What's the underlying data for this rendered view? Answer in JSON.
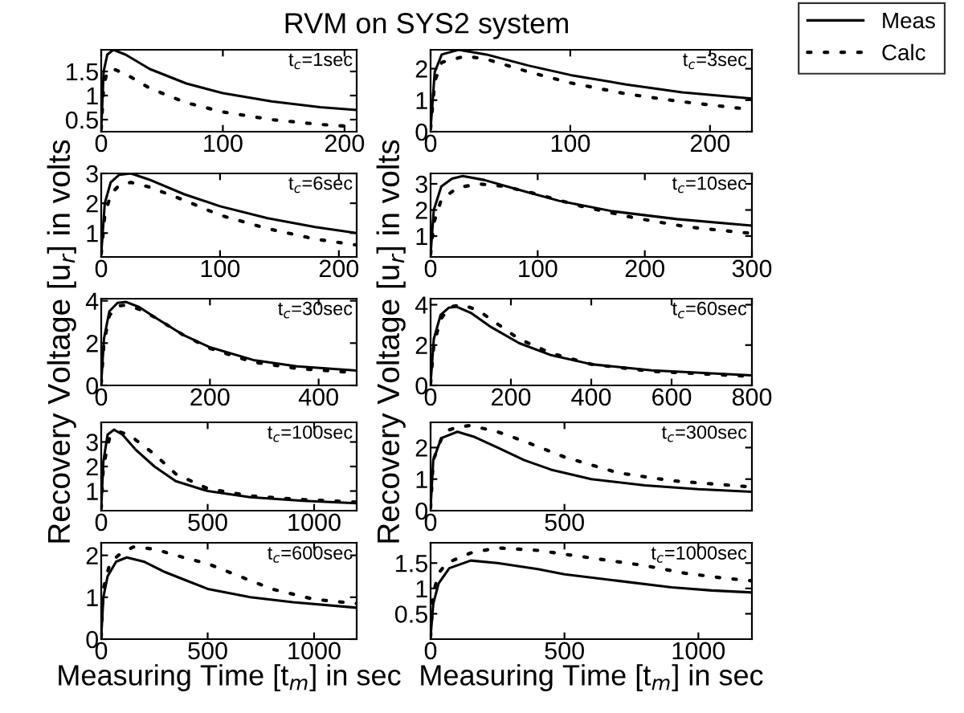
{
  "chart_data": [
    {
      "type": "line",
      "title": "RVM on SYS2 system",
      "annotations": [
        "t$_{c}$=1sec"
      ],
      "xlim": [
        0,
        210
      ],
      "xticks": [
        0,
        100,
        200
      ],
      "ylim": [
        0.25,
        1.95
      ],
      "yticks": [
        0.5,
        1,
        1.5
      ],
      "marker": "none",
      "legend": false,
      "series": [
        {
          "color": "#000000",
          "line_style": "solid",
          "x": [
            0,
            2,
            5,
            10,
            20,
            40,
            70,
            100,
            140,
            180,
            210
          ],
          "values": [
            0.3,
            1.5,
            1.85,
            1.95,
            1.85,
            1.55,
            1.25,
            1.05,
            0.88,
            0.76,
            0.7
          ]
        },
        {
          "color": "#000000",
          "line_style": "dotted",
          "x": [
            0,
            2,
            5,
            10,
            20,
            40,
            70,
            100,
            140,
            180,
            210
          ],
          "values": [
            0.3,
            1.2,
            1.5,
            1.55,
            1.45,
            1.15,
            0.85,
            0.66,
            0.5,
            0.4,
            0.35
          ]
        }
      ]
    },
    {
      "type": "line",
      "annotations": [
        "t$_{c}$=3sec"
      ],
      "xlim": [
        0,
        230
      ],
      "xticks": [
        0,
        100,
        200
      ],
      "ylim": [
        0,
        2.6
      ],
      "yticks": [
        0,
        1,
        2
      ],
      "marker": "none",
      "legend": "top right",
      "series": [
        {
          "name": "Meas",
          "color": "#000000",
          "line_style": "solid",
          "x": [
            0,
            3,
            8,
            20,
            40,
            70,
            100,
            140,
            180,
            230
          ],
          "values": [
            0.1,
            1.9,
            2.45,
            2.6,
            2.45,
            2.1,
            1.8,
            1.5,
            1.25,
            1.05
          ]
        },
        {
          "name": "Calc",
          "color": "#000000",
          "line_style": "dotted",
          "x": [
            0,
            3,
            8,
            25,
            40,
            70,
            100,
            140,
            180,
            230
          ],
          "values": [
            0.1,
            1.6,
            2.2,
            2.4,
            2.3,
            1.9,
            1.55,
            1.2,
            0.95,
            0.7
          ]
        }
      ]
    },
    {
      "type": "line",
      "annotations": [
        "t$_{c}$=6sec"
      ],
      "xlim": [
        0,
        215
      ],
      "xticks": [
        0,
        100,
        200
      ],
      "ylim": [
        0.2,
        3.0
      ],
      "yticks": [
        1,
        2,
        3
      ],
      "marker": "none",
      "legend": false,
      "series": [
        {
          "color": "#000000",
          "line_style": "solid",
          "x": [
            0,
            3,
            8,
            15,
            25,
            40,
            70,
            100,
            140,
            180,
            215
          ],
          "values": [
            0.3,
            2.0,
            2.7,
            2.95,
            3.0,
            2.8,
            2.3,
            1.9,
            1.5,
            1.2,
            1.0
          ]
        },
        {
          "color": "#000000",
          "line_style": "dotted",
          "x": [
            0,
            3,
            8,
            15,
            25,
            40,
            70,
            100,
            140,
            180,
            215
          ],
          "values": [
            0.3,
            1.6,
            2.3,
            2.6,
            2.7,
            2.55,
            2.1,
            1.6,
            1.15,
            0.8,
            0.6
          ]
        }
      ]
    },
    {
      "type": "line",
      "annotations": [
        "t$_{c}$=10sec"
      ],
      "xlim": [
        0,
        300
      ],
      "xticks": [
        0,
        100,
        200,
        300
      ],
      "ylim": [
        0.2,
        3.4
      ],
      "yticks": [
        1,
        2,
        3
      ],
      "marker": "none",
      "legend": false,
      "series": [
        {
          "color": "#000000",
          "line_style": "solid",
          "x": [
            0,
            3,
            10,
            20,
            30,
            50,
            80,
            120,
            170,
            230,
            300
          ],
          "values": [
            0.3,
            2.0,
            2.9,
            3.2,
            3.3,
            3.15,
            2.8,
            2.35,
            1.95,
            1.65,
            1.4
          ]
        },
        {
          "color": "#000000",
          "line_style": "dotted",
          "x": [
            0,
            3,
            10,
            25,
            45,
            70,
            100,
            140,
            190,
            240,
            300
          ],
          "values": [
            0.3,
            1.5,
            2.4,
            2.85,
            3.0,
            2.9,
            2.6,
            2.15,
            1.7,
            1.35,
            1.1
          ]
        }
      ]
    },
    {
      "type": "line",
      "ylabel": "Recovery Voltage [u$_{r}$] in volts",
      "annotations": [
        "t$_{c}$=30sec"
      ],
      "xlim": [
        0,
        470
      ],
      "xticks": [
        0,
        200,
        400
      ],
      "ylim": [
        0,
        4.1
      ],
      "yticks": [
        0,
        2,
        4
      ],
      "marker": "none",
      "legend": false,
      "series": [
        {
          "color": "#000000",
          "line_style": "solid",
          "x": [
            0,
            5,
            15,
            30,
            45,
            70,
            100,
            150,
            200,
            280,
            360,
            470
          ],
          "values": [
            0.1,
            2.2,
            3.5,
            3.9,
            3.95,
            3.7,
            3.2,
            2.4,
            1.8,
            1.2,
            0.9,
            0.7
          ]
        },
        {
          "color": "#000000",
          "line_style": "dotted",
          "x": [
            0,
            5,
            15,
            30,
            45,
            70,
            100,
            150,
            200,
            280,
            360,
            470
          ],
          "values": [
            0.1,
            2.0,
            3.3,
            3.75,
            3.8,
            3.6,
            3.2,
            2.4,
            1.75,
            1.1,
            0.8,
            0.6
          ]
        }
      ]
    },
    {
      "type": "line",
      "ylabel": "Recovery Voltage [u$_{r}$] in volts",
      "annotations": [
        "t$_{c}$=60sec"
      ],
      "xlim": [
        0,
        800
      ],
      "xticks": [
        0,
        200,
        400,
        600,
        800
      ],
      "ylim": [
        0,
        4.3
      ],
      "yticks": [
        0,
        2,
        4
      ],
      "marker": "none",
      "legend": false,
      "series": [
        {
          "color": "#000000",
          "line_style": "solid",
          "x": [
            0,
            8,
            25,
            45,
            65,
            100,
            150,
            220,
            300,
            400,
            550,
            800
          ],
          "values": [
            0.1,
            2.3,
            3.5,
            3.85,
            3.9,
            3.6,
            2.9,
            2.1,
            1.5,
            1.05,
            0.75,
            0.5
          ]
        },
        {
          "color": "#000000",
          "line_style": "dotted",
          "x": [
            0,
            8,
            25,
            50,
            80,
            120,
            170,
            220,
            300,
            400,
            550,
            800
          ],
          "values": [
            0.1,
            2.0,
            3.3,
            3.9,
            4.0,
            3.7,
            3.0,
            2.3,
            1.6,
            1.05,
            0.7,
            0.45
          ]
        }
      ]
    },
    {
      "type": "line",
      "annotations": [
        "t$_{c}$=100sec"
      ],
      "xlim": [
        0,
        1200
      ],
      "xticks": [
        0,
        500,
        1000
      ],
      "ylim": [
        0.2,
        3.8
      ],
      "yticks": [
        1,
        2,
        3
      ],
      "marker": "none",
      "legend": false,
      "series": [
        {
          "color": "#000000",
          "line_style": "solid",
          "x": [
            0,
            10,
            30,
            60,
            100,
            160,
            250,
            350,
            500,
            700,
            950,
            1200
          ],
          "values": [
            0.3,
            2.2,
            3.3,
            3.5,
            3.3,
            2.7,
            2.0,
            1.4,
            1.0,
            0.75,
            0.6,
            0.5
          ]
        },
        {
          "color": "#000000",
          "line_style": "dotted",
          "x": [
            0,
            10,
            40,
            90,
            130,
            190,
            250,
            350,
            500,
            700,
            950,
            1200
          ],
          "values": [
            0.3,
            2.0,
            3.2,
            3.4,
            3.3,
            2.9,
            2.5,
            1.7,
            1.1,
            0.8,
            0.65,
            0.55
          ]
        }
      ]
    },
    {
      "type": "line",
      "annotations": [
        "t$_{c}$=300sec"
      ],
      "xlim": [
        0,
        1200
      ],
      "xticks": [
        0,
        500
      ],
      "ylim": [
        0,
        2.8
      ],
      "yticks": [
        0,
        1,
        2
      ],
      "marker": "none",
      "legend": false,
      "series": [
        {
          "color": "#000000",
          "line_style": "solid",
          "x": [
            0,
            10,
            40,
            100,
            160,
            250,
            350,
            450,
            600,
            800,
            1000,
            1200
          ],
          "values": [
            0.1,
            1.6,
            2.3,
            2.5,
            2.35,
            2.0,
            1.6,
            1.3,
            1.0,
            0.8,
            0.68,
            0.6
          ]
        },
        {
          "color": "#000000",
          "line_style": "dotted",
          "x": [
            0,
            10,
            50,
            100,
            150,
            250,
            350,
            500,
            700,
            900,
            1050,
            1200
          ],
          "values": [
            0.1,
            1.6,
            2.5,
            2.65,
            2.7,
            2.5,
            2.2,
            1.7,
            1.2,
            0.95,
            0.85,
            0.75
          ]
        }
      ]
    },
    {
      "type": "line",
      "xlabel": "Measuring Time [t$_{m}$] in sec",
      "annotations": [
        "t$_{c}$=600sec"
      ],
      "xlim": [
        0,
        1200
      ],
      "xticks": [
        0,
        500,
        1000
      ],
      "ylim": [
        0,
        2.3
      ],
      "yticks": [
        0,
        1,
        2
      ],
      "marker": "none",
      "legend": false,
      "series": [
        {
          "color": "#000000",
          "line_style": "solid",
          "x": [
            0,
            10,
            30,
            70,
            120,
            200,
            300,
            400,
            500,
            700,
            900,
            1200
          ],
          "values": [
            0.05,
            1.0,
            1.5,
            1.85,
            1.95,
            1.85,
            1.6,
            1.4,
            1.2,
            1.0,
            0.88,
            0.75
          ]
        },
        {
          "color": "#000000",
          "line_style": "dotted",
          "x": [
            0,
            10,
            40,
            80,
            150,
            250,
            350,
            500,
            650,
            800,
            1000,
            1200
          ],
          "values": [
            0.05,
            1.2,
            1.8,
            2.0,
            2.2,
            2.15,
            2.0,
            1.8,
            1.5,
            1.2,
            0.95,
            0.85
          ]
        }
      ]
    },
    {
      "type": "line",
      "xlabel": "Measuring Time [t$_{m}$] in sec",
      "annotations": [
        "t$_{c}$=1000sec"
      ],
      "xlim": [
        0,
        1200
      ],
      "xticks": [
        0,
        500,
        1000
      ],
      "ylim": [
        0,
        1.9
      ],
      "yticks": [
        0.5,
        1,
        1.5
      ],
      "marker": "none",
      "legend": false,
      "series": [
        {
          "color": "#000000",
          "line_style": "solid",
          "x": [
            0,
            10,
            30,
            70,
            150,
            250,
            400,
            500,
            700,
            900,
            1050,
            1200
          ],
          "values": [
            0.05,
            0.7,
            1.1,
            1.4,
            1.55,
            1.5,
            1.38,
            1.28,
            1.15,
            1.02,
            0.96,
            0.92
          ]
        },
        {
          "color": "#000000",
          "line_style": "dotted",
          "x": [
            0,
            10,
            30,
            60,
            150,
            250,
            400,
            600,
            800,
            950,
            1100,
            1200
          ],
          "values": [
            0.05,
            0.9,
            1.3,
            1.5,
            1.7,
            1.8,
            1.75,
            1.6,
            1.45,
            1.3,
            1.2,
            1.15
          ]
        }
      ]
    }
  ]
}
